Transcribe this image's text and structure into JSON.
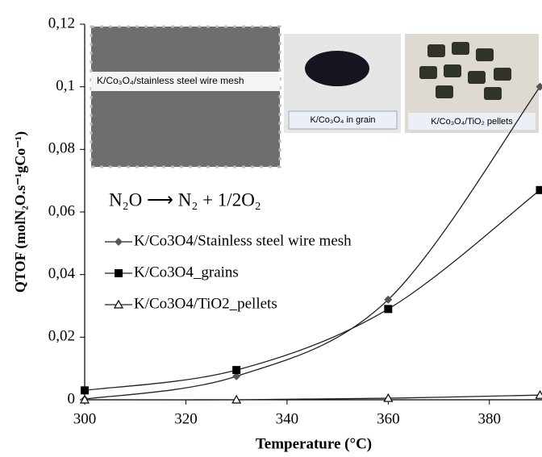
{
  "chart_data": {
    "type": "line",
    "x": [
      300,
      330,
      360,
      390
    ],
    "series": [
      {
        "name": "K/Co3O4/Stainless steel wire mesh",
        "color": "#555555",
        "marker": "diamond",
        "values": [
          0.0002,
          0.0075,
          0.032,
          0.1
        ]
      },
      {
        "name": "K/Co3O4_grains",
        "color": "#000000",
        "marker": "square",
        "values": [
          0.003,
          0.0095,
          0.029,
          0.067
        ]
      },
      {
        "name": "K/Co3O4/TiO2_pellets",
        "color": "#000000",
        "marker": "triangle",
        "values": [
          0,
          0,
          0.0005,
          0.0015
        ]
      }
    ],
    "xlim": [
      300,
      390.4
    ],
    "ylim": [
      0,
      0.12
    ],
    "xticks": [
      300,
      320,
      340,
      360,
      380
    ],
    "yticks": [
      0,
      {
        "value": 0.02,
        "label": "0,02"
      },
      {
        "value": 0.04,
        "label": "0,04"
      },
      {
        "value": 0.06,
        "label": "0,06"
      },
      {
        "value": 0.08,
        "label": "0,08"
      },
      {
        "value": 0.1,
        "label": "0,1"
      },
      {
        "value": 0.12,
        "label": "0,12"
      }
    ],
    "xlabel": "Temperature (°C)",
    "ylabel": "QTOF (molN₂O.s⁻¹gCo⁻¹)",
    "legend": "left",
    "annotations": {
      "equation": "N₂O ⟶ N₂ + 1/2O₂",
      "photo_mesh": "K/Co₃O₄/stainless steel wire mesh",
      "photo_grain": "K/Co₃O₄ in grain",
      "photo_pellets": "K/Co₃O₄/TiO₂ pellets"
    }
  }
}
